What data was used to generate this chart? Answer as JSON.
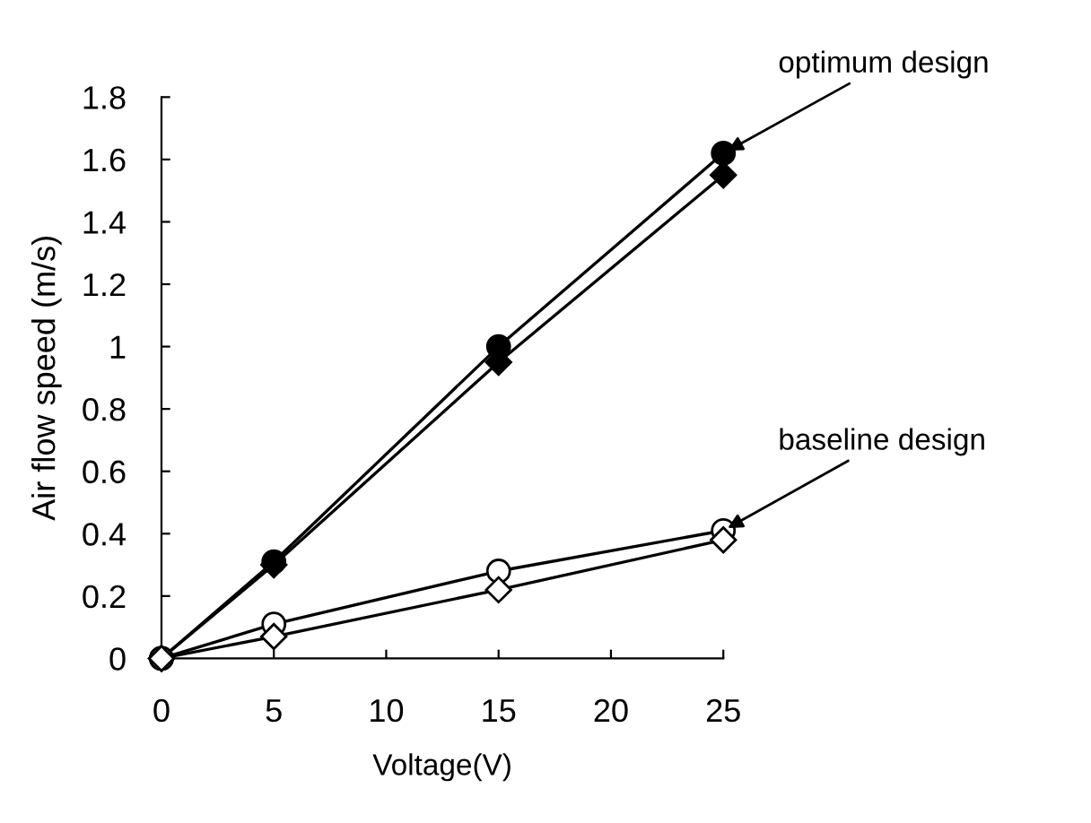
{
  "chart_data": {
    "type": "line",
    "xlabel": "Voltage(V)",
    "ylabel": "Air flow speed (m/s)",
    "x": [
      0,
      5,
      15,
      25
    ],
    "series": [
      {
        "color": "#000000",
        "marker": "circle",
        "values": [
          0,
          0.31,
          1.0,
          1.62
        ]
      },
      {
        "color": "#000000",
        "marker": "diamond",
        "values": [
          0,
          0.3,
          0.95,
          1.55
        ]
      },
      {
        "color": "#ffffff",
        "marker": "circle",
        "values": [
          0,
          0.11,
          0.28,
          0.41
        ]
      },
      {
        "color": "#ffffff",
        "marker": "diamond",
        "values": [
          0,
          0.07,
          0.22,
          0.38
        ]
      }
    ],
    "xlim": [
      0,
      25
    ],
    "xticks": [
      0,
      5,
      10,
      15,
      20,
      25
    ],
    "ylim": [
      0,
      1.8
    ],
    "yticks": [
      0,
      0.2,
      0.4,
      0.6,
      0.8,
      1,
      1.2,
      1.4,
      1.6,
      1.8
    ],
    "annotations": [
      {
        "text": "optimum design",
        "x": 25,
        "y": 1.62
      },
      {
        "text": "baseline design",
        "x": 25,
        "y": 0.41
      }
    ],
    "grid": false,
    "legend": false
  }
}
